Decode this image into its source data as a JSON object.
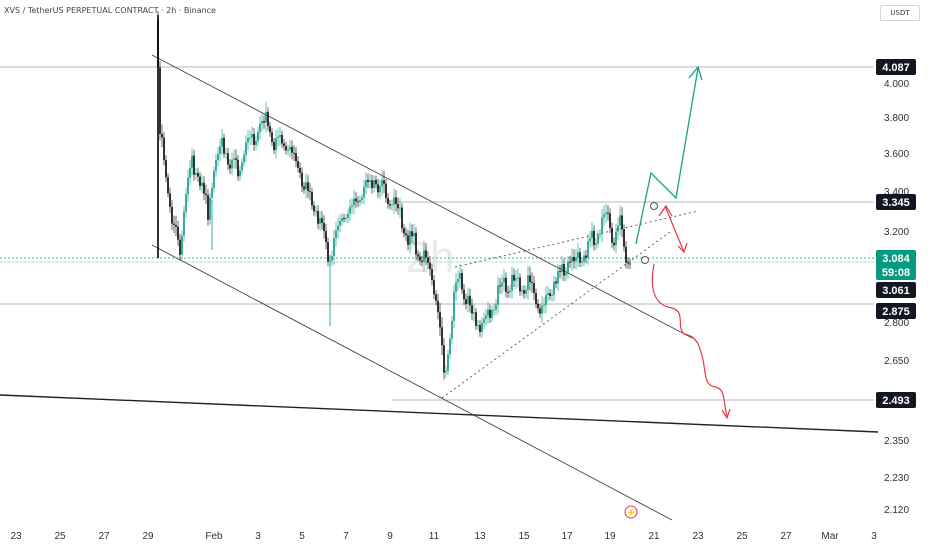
{
  "header": {
    "title": "XVS / TetherUS PERPETUAL CONTRACT · 2h · Binance",
    "currency": "USDT",
    "watermark": "2h"
  },
  "chart_data": {
    "type": "candlestick",
    "y_axis": {
      "scale": "log",
      "ticks": [
        "4.000",
        "3.800",
        "3.600",
        "3.400",
        "3.200",
        "2.800",
        "2.650",
        "2.350",
        "2.230",
        "2.120"
      ]
    },
    "x_axis": {
      "ticks": [
        "23",
        "25",
        "27",
        "29",
        "Feb",
        "3",
        "5",
        "7",
        "9",
        "11",
        "13",
        "15",
        "17",
        "19",
        "21",
        "23",
        "25",
        "27",
        "Mar",
        "3"
      ]
    },
    "price_labels": [
      {
        "value": "4.087",
        "style": "dark"
      },
      {
        "value": "3.345",
        "style": "dark"
      },
      {
        "value": "3.084",
        "style": "green"
      },
      {
        "value": "59:08",
        "style": "green"
      },
      {
        "value": "3.061",
        "style": "dark"
      },
      {
        "value": "2.875",
        "style": "dark"
      },
      {
        "value": "2.493",
        "style": "dark"
      }
    ],
    "colors": {
      "up": "#089981",
      "down": "#000000",
      "bullish_arrow": "#16a085",
      "bearish_arrow": "#e53946",
      "trendline": "#444444"
    }
  }
}
